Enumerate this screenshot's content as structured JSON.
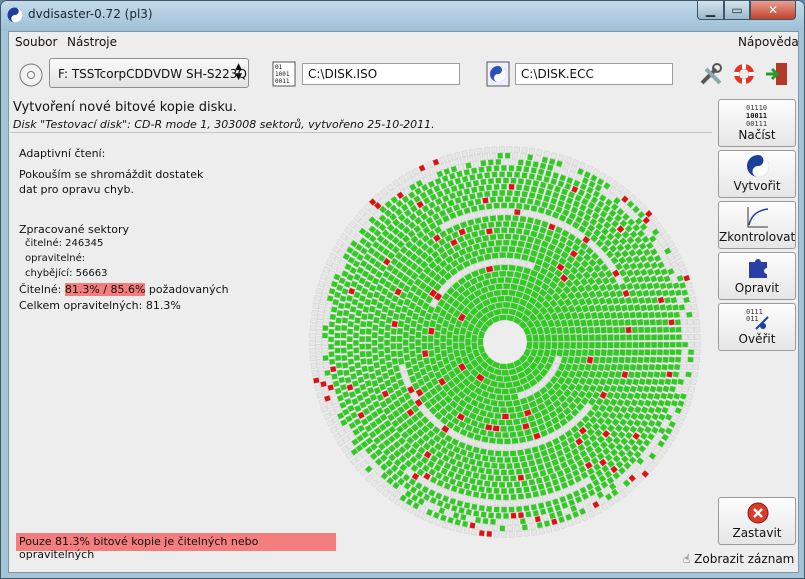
{
  "window": {
    "title": "dvdisaster-0.72 (pl3)"
  },
  "menu": {
    "file": "Soubor",
    "tools": "Nástroje",
    "help": "Nápověda"
  },
  "toolbar": {
    "drive": "F: TSSTcorpCDDVDW SH-S223Q",
    "iso_path": "C:\\DISK.ISO",
    "ecc_path": "C:\\DISK.ECC"
  },
  "header": {
    "title": "Vytvoření nové bitové kopie disku.",
    "subtitle": "Disk \"Testovací disk\": CD-R mode 1, 303008 sektorů, vytvořeno 25-10-2011."
  },
  "stats": {
    "mode": "Adaptivní čtení:",
    "message_line1": "Pokouším se shromáždit dostatek",
    "message_line2": "dat pro opravu chyb.",
    "processed_heading": "Zpracované sektory",
    "readable": "čitelné: 246345",
    "correctable": "opravitelné:",
    "missing": "chybějící: 56663",
    "readable_label": "Čitelné:",
    "readable_value": "81.3% / 85.6%",
    "readable_suffix": "požadovaných",
    "total_correctable": "Celkem opravitelných: 81.3%"
  },
  "warning": "Pouze 81.3% bitové kopie je čitelných nebo opravitelných",
  "sidebar": {
    "read": "Načíst",
    "create": "Vytvořit",
    "verify": "Zkontrolovat",
    "repair": "Opravit",
    "compare": "Ověřit",
    "stop": "Zastavit"
  },
  "status": {
    "log_button": "Zobrazit záznam"
  },
  "colors": {
    "ok": "#2ecc1f",
    "error": "#e01010",
    "empty": "#e6e6e6",
    "highlight": "#f47d7d"
  },
  "icons": {
    "app": "yin-yang-icon",
    "disc": "cd-icon",
    "iso": "binary-file-icon",
    "ecc": "ecc-file-icon",
    "prefs": "tools-icon",
    "help": "lifebuoy-icon",
    "quit": "exit-icon",
    "stop": "stop-icon",
    "log": "hand-pointer-icon"
  },
  "disc_map": {
    "readable_fraction": 0.813,
    "error_fraction": 0.02
  }
}
